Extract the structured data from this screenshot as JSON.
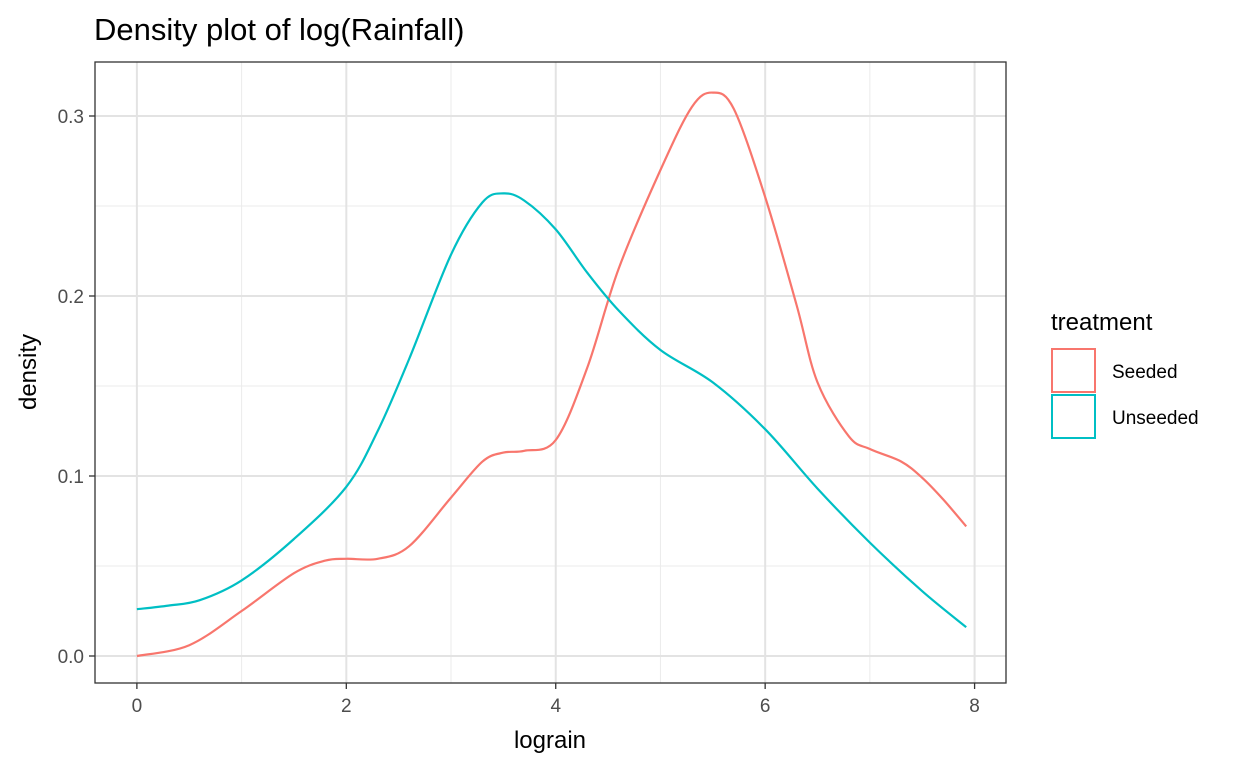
{
  "chart_data": {
    "type": "line",
    "title": "Density plot of log(Rainfall)",
    "xlabel": "lograin",
    "ylabel": "density",
    "xlim": [
      -0.4,
      8.3
    ],
    "ylim": [
      -0.015,
      0.33
    ],
    "x_ticks": [
      0,
      2,
      4,
      6,
      8
    ],
    "x_tick_labels": [
      "0",
      "2",
      "4",
      "6",
      "8"
    ],
    "y_ticks": [
      0.0,
      0.1,
      0.2,
      0.3
    ],
    "y_tick_labels": [
      "0.0",
      "0.1",
      "0.2",
      "0.3"
    ],
    "x_minor_ticks": [
      1,
      3,
      5,
      7
    ],
    "y_minor_ticks": [
      0.05,
      0.15,
      0.25
    ],
    "grid": true,
    "legend": {
      "title": "treatment",
      "position": "right"
    },
    "series": [
      {
        "name": "Seeded",
        "color": "#F8766D",
        "x": [
          0,
          0.5,
          1.0,
          1.5,
          1.8,
          2.0,
          2.3,
          2.6,
          3.0,
          3.3,
          3.5,
          3.7,
          4.0,
          4.3,
          4.6,
          5.0,
          5.3,
          5.5,
          5.7,
          6.0,
          6.3,
          6.5,
          6.8,
          7.0,
          7.3,
          7.5,
          7.7,
          7.92
        ],
        "y": [
          0.0,
          0.006,
          0.025,
          0.046,
          0.053,
          0.054,
          0.054,
          0.061,
          0.088,
          0.108,
          0.113,
          0.114,
          0.12,
          0.16,
          0.215,
          0.27,
          0.305,
          0.313,
          0.304,
          0.255,
          0.195,
          0.152,
          0.122,
          0.115,
          0.108,
          0.099,
          0.087,
          0.072
        ]
      },
      {
        "name": "Unseeded",
        "color": "#00BFC4",
        "x": [
          0,
          0.3,
          0.6,
          1.0,
          1.5,
          2.0,
          2.3,
          2.6,
          3.0,
          3.3,
          3.5,
          3.7,
          4.0,
          4.3,
          4.6,
          5.0,
          5.5,
          6.0,
          6.5,
          7.0,
          7.5,
          7.92
        ],
        "y": [
          0.026,
          0.028,
          0.031,
          0.042,
          0.065,
          0.094,
          0.125,
          0.165,
          0.223,
          0.252,
          0.257,
          0.253,
          0.237,
          0.213,
          0.192,
          0.17,
          0.152,
          0.126,
          0.093,
          0.063,
          0.036,
          0.016
        ]
      }
    ]
  }
}
